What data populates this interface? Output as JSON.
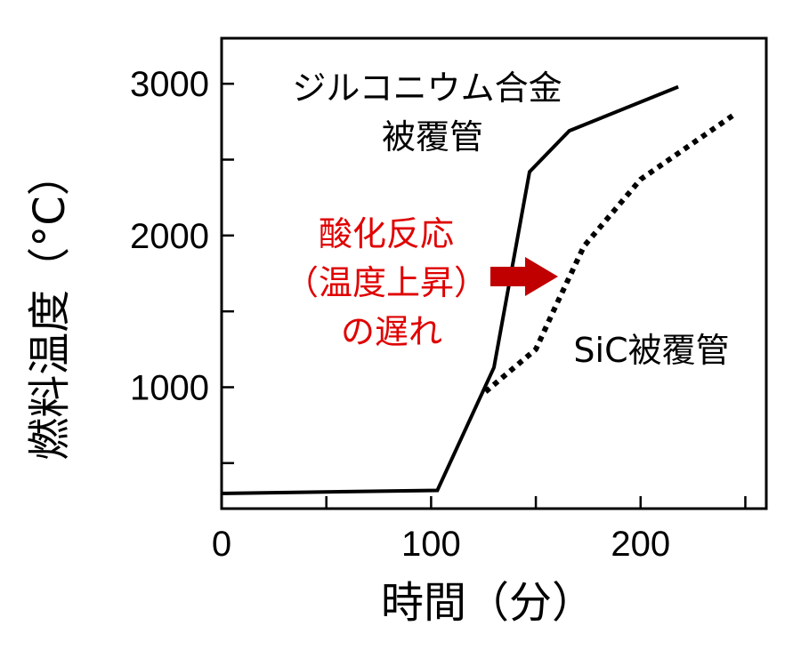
{
  "chart_data": {
    "type": "line",
    "title": "",
    "xlabel": "時間（分）",
    "ylabel": "燃料温度（°C）",
    "xlim": [
      0,
      260
    ],
    "ylim": [
      200,
      3300
    ],
    "x_ticks": [
      0,
      100,
      200
    ],
    "x_tick_labels": [
      "0",
      "100",
      "200"
    ],
    "x_minor_ticks": [
      50,
      150,
      250
    ],
    "y_ticks": [
      1000,
      2000,
      3000
    ],
    "y_tick_labels": [
      "1000",
      "2000",
      "3000"
    ],
    "y_minor_ticks": [
      500,
      1500,
      2500
    ],
    "grid": false,
    "legend": "none",
    "series": [
      {
        "name": "ジルコニウム合金被覆管",
        "style": "solid",
        "color": "#000000",
        "x": [
          0,
          103,
          130,
          147,
          166,
          218
        ],
        "y": [
          300,
          320,
          1130,
          2420,
          2690,
          2980
        ]
      },
      {
        "name": "SiC被覆管",
        "style": "dotted",
        "color": "#000000",
        "x": [
          126,
          150,
          160,
          173,
          200,
          245
        ],
        "y": [
          970,
          1250,
          1550,
          1930,
          2370,
          2800
        ]
      }
    ],
    "annotations": [
      {
        "id": "zr",
        "lines": [
          "ジルコニウム合金",
          "被覆管"
        ],
        "color": "#000000"
      },
      {
        "id": "sic",
        "lines": [
          "SiC被覆管"
        ],
        "color": "#000000"
      },
      {
        "id": "delay",
        "lines": [
          "酸化反応",
          "（温度上昇）",
          "の遅れ"
        ],
        "color": "#e00000"
      }
    ],
    "arrow_color": "#c00000"
  }
}
